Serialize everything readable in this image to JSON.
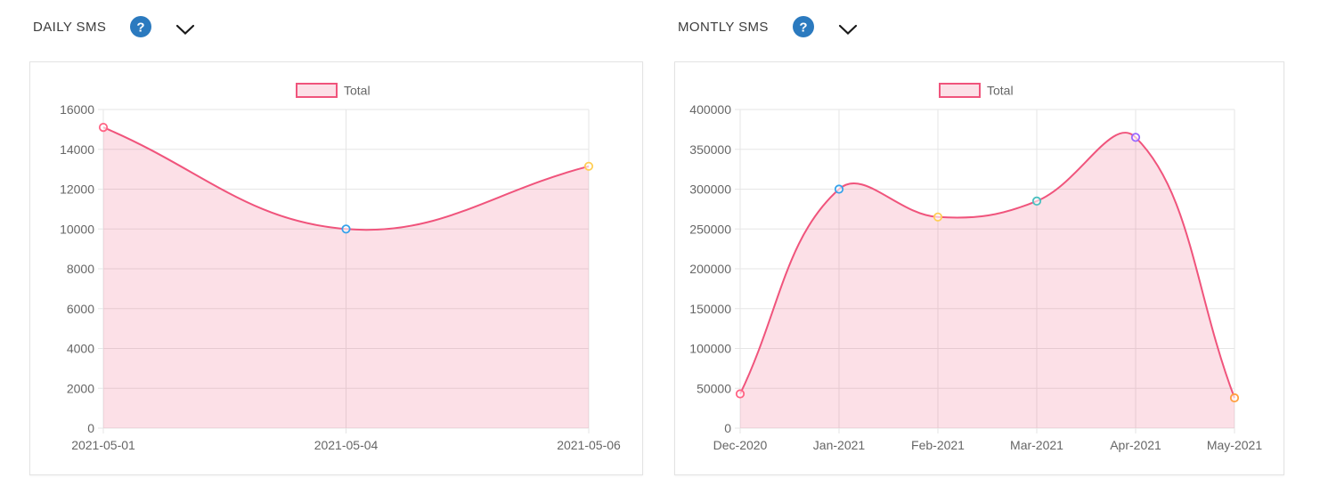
{
  "colors": {
    "accent_blue": "#2b7abf",
    "line_pink": "#f0547c",
    "grid": "#e5e5e5",
    "tick_text": "#666666",
    "title_text": "#3c3c3c",
    "card_border": "#e3e3e3"
  },
  "widgets": [
    {
      "title": "DAILY SMS",
      "help_icon": "question-help-icon",
      "help_glyph": "?",
      "dropdown_icon": "chevron-down-icon",
      "legend_label": "Total"
    },
    {
      "title": "MONTLY SMS",
      "help_icon": "question-help-icon",
      "help_glyph": "?",
      "dropdown_icon": "chevron-down-icon",
      "legend_label": "Total"
    }
  ],
  "chart_data": [
    {
      "type": "area",
      "title": "DAILY SMS",
      "categories": [
        "2021-05-01",
        "2021-05-04",
        "2021-05-06"
      ],
      "series": [
        {
          "name": "Total",
          "values": [
            15100,
            10000,
            13150
          ]
        }
      ],
      "ylim": [
        0,
        16000
      ],
      "yticks": [
        0,
        2000,
        4000,
        6000,
        8000,
        10000,
        12000,
        14000,
        16000
      ],
      "xlabel": "",
      "ylabel": "",
      "grid": true,
      "legend_position": "top-center",
      "line_color": "#f0547c",
      "fill_opacity": 0.18,
      "point_colors": [
        "#ff6384",
        "#36a2eb",
        "#ffce56"
      ]
    },
    {
      "type": "area",
      "title": "MONTLY SMS",
      "categories": [
        "Dec-2020",
        "Jan-2021",
        "Feb-2021",
        "Mar-2021",
        "Apr-2021",
        "May-2021"
      ],
      "series": [
        {
          "name": "Total",
          "values": [
            43000,
            300000,
            265000,
            285000,
            365000,
            38000
          ]
        }
      ],
      "ylim": [
        0,
        400000
      ],
      "yticks": [
        0,
        50000,
        100000,
        150000,
        200000,
        250000,
        300000,
        350000,
        400000
      ],
      "xlabel": "",
      "ylabel": "",
      "grid": true,
      "legend_position": "top-center",
      "line_color": "#f0547c",
      "fill_opacity": 0.18,
      "point_colors": [
        "#ff6384",
        "#36a2eb",
        "#ffce56",
        "#4bc0c0",
        "#9966ff",
        "#ff9f40"
      ]
    }
  ]
}
